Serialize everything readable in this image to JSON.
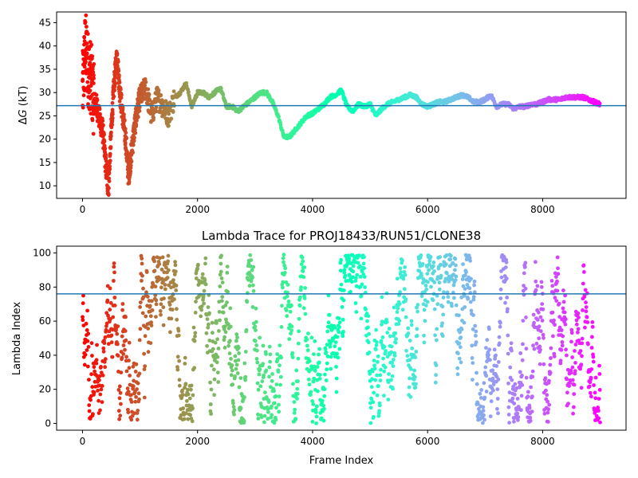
{
  "chart_data": [
    {
      "type": "scatter",
      "title": "",
      "xlabel": "",
      "ylabel": "ΔG (kT)",
      "ylabel_symbol": "Δ",
      "ylabel_var": "G",
      "ylabel_unit": " (kT)",
      "xlim": [
        -450,
        9450
      ],
      "ylim": [
        7.3,
        47.3
      ],
      "xticks": [
        0,
        2000,
        4000,
        6000,
        8000
      ],
      "yticks": [
        10,
        15,
        20,
        25,
        30,
        35,
        40,
        45
      ],
      "hline": 27.2,
      "colormap": "rainbow (red → yellow → cyan → blue → violet)",
      "hline_color": "#1f77b4",
      "series": [
        {
          "x": [
            0,
            50,
            100,
            150,
            200,
            250,
            300,
            350,
            400,
            450,
            500,
            550,
            600,
            650,
            700,
            750,
            800,
            850,
            900,
            950,
            1000,
            1100,
            1200,
            1300,
            1400,
            1500,
            1600,
            1700,
            1800,
            1900,
            2000,
            2100,
            2200,
            2300,
            2400,
            2500,
            2600,
            2700,
            2800,
            2900,
            3000,
            3100,
            3200,
            3300,
            3400,
            3500,
            3600,
            3700,
            3800,
            3900,
            4000,
            4100,
            4200,
            4300,
            4400,
            4500,
            4600,
            4700,
            4800,
            4900,
            5000,
            5100,
            5200,
            5300,
            5400,
            5500,
            5600,
            5700,
            5800,
            5900,
            6000,
            6100,
            6200,
            6300,
            6400,
            6500,
            6600,
            6700,
            6800,
            6900,
            7000,
            7100,
            7200,
            7300,
            7400,
            7500,
            7600,
            7700,
            7800,
            7900,
            8000,
            8100,
            8200,
            8300,
            8400,
            8500,
            8600,
            8700,
            8800,
            8900,
            9000
          ],
          "y": [
            30,
            40,
            35,
            33,
            28,
            27,
            24,
            22,
            15,
            9,
            22,
            32,
            38,
            30,
            25,
            20,
            12,
            17,
            22,
            26,
            29,
            31,
            25,
            29,
            27,
            25,
            29,
            30,
            32,
            27,
            30,
            30,
            29,
            30,
            31,
            27,
            27,
            26,
            27,
            28,
            29,
            30,
            30,
            28,
            25,
            20.5,
            20.5,
            22,
            23.5,
            25,
            25.5,
            26.5,
            27.5,
            29,
            29.5,
            30.5,
            27,
            26,
            27.5,
            27,
            27.5,
            25,
            26.5,
            27.5,
            28,
            28.5,
            29,
            29.5,
            29,
            27.5,
            27,
            27.5,
            28,
            28,
            28.5,
            29,
            29.5,
            29,
            28,
            28,
            28.5,
            29.5,
            27,
            27.5,
            27.5,
            26.5,
            27,
            27,
            27.5,
            27.5,
            28,
            28.5,
            28.5,
            28.5,
            29,
            29,
            29,
            29,
            28.5,
            28,
            27.5
          ]
        }
      ]
    },
    {
      "type": "scatter",
      "title": "Lambda Trace for PROJ18433/RUN51/CLONE38",
      "xlabel": "Frame Index",
      "ylabel": "Lambda Index",
      "xlim": [
        -450,
        9450
      ],
      "ylim": [
        -4,
        104
      ],
      "xticks": [
        0,
        2000,
        4000,
        6000,
        8000
      ],
      "yticks": [
        0,
        20,
        40,
        60,
        80,
        100
      ],
      "hline": 76,
      "colormap": "rainbow (red → yellow → cyan → blue → violet)",
      "hline_color": "#1f77b4",
      "x_range": [
        0,
        9000
      ],
      "y_range": [
        0,
        99
      ]
    }
  ],
  "xtick_labels": [
    "0",
    "2000",
    "4000",
    "6000",
    "8000"
  ],
  "top_ytick_labels": [
    "10",
    "15",
    "20",
    "25",
    "30",
    "35",
    "40",
    "45"
  ],
  "bottom_ytick_labels": [
    "0",
    "20",
    "40",
    "60",
    "80",
    "100"
  ]
}
